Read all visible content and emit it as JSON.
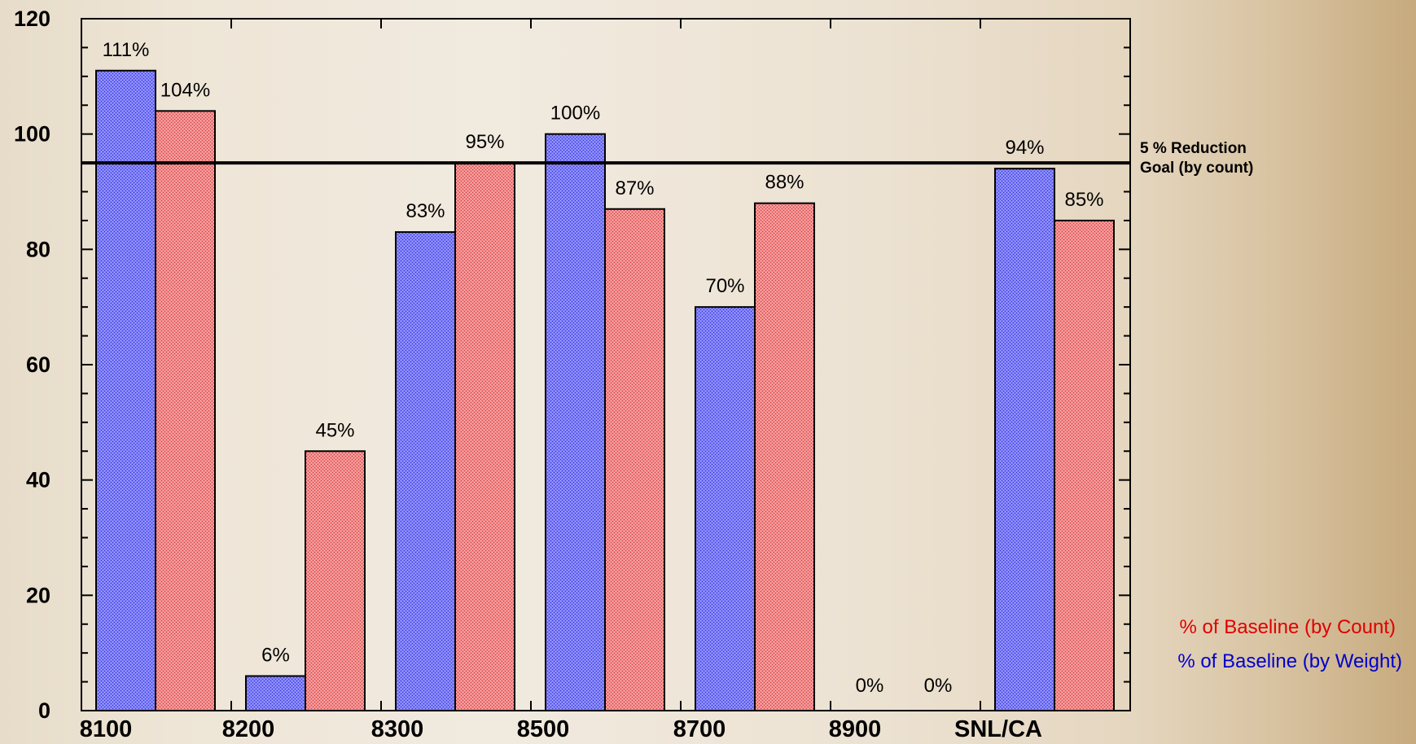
{
  "chart_data": {
    "type": "bar",
    "categories": [
      "8100",
      "8200",
      "8300",
      "8500",
      "8700",
      "8900",
      "SNL/CA"
    ],
    "series": [
      {
        "name": "% of Baseline (by Weight)",
        "color": "#5555ee",
        "values": [
          111,
          6,
          83,
          100,
          70,
          0,
          94
        ],
        "labels": [
          "111%",
          "6%",
          "83%",
          "100%",
          "70%",
          "0%",
          "94%"
        ]
      },
      {
        "name": "% of Baseline (by Count)",
        "color": "#ee5555",
        "values": [
          104,
          45,
          95,
          87,
          88,
          0,
          85
        ],
        "labels": [
          "104%",
          "45%",
          "95%",
          "87%",
          "88%",
          "0%",
          "85%"
        ]
      }
    ],
    "ylim": [
      0,
      120
    ],
    "yticks": [
      0,
      20,
      40,
      60,
      80,
      100,
      120
    ],
    "reference_line": {
      "value": 95,
      "label_line1": "5 % Reduction",
      "label_line2": "Goal (by count)"
    },
    "legend": {
      "placement": "bottom-right",
      "count_label": "% of Baseline (by Count)",
      "weight_label": "% of Baseline (by Weight)",
      "count_color": "#e00000",
      "weight_color": "#0000cc"
    },
    "grid": false,
    "title": "",
    "xlabel": "",
    "ylabel": ""
  }
}
